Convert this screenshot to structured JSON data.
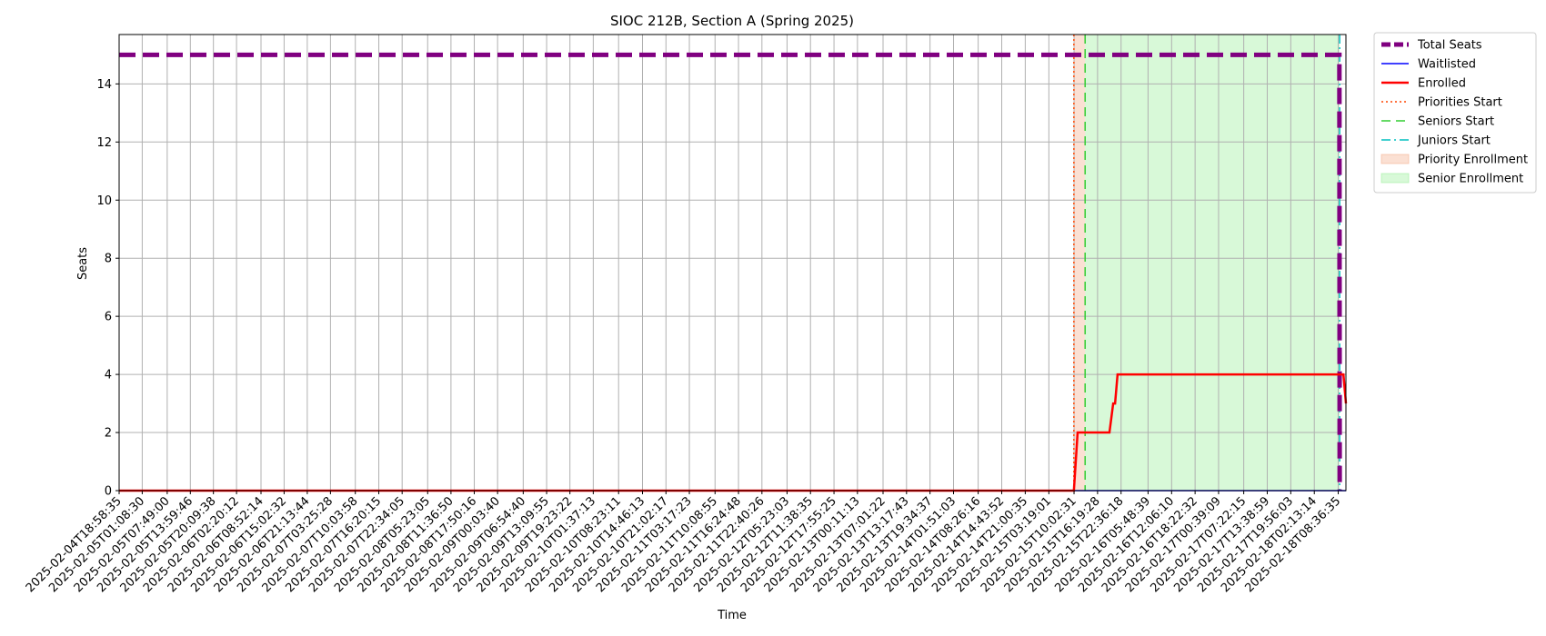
{
  "chart_data": {
    "type": "line",
    "title": "SIOC 212B, Section A (Spring 2025)",
    "xlabel": "Time",
    "ylabel": "Seats",
    "x_range": [
      "2025-02-04T18:58:35",
      "2025-02-18T10:40:00"
    ],
    "ylim": [
      0,
      15.7
    ],
    "y_ticks": [
      0,
      2,
      4,
      6,
      8,
      10,
      12,
      14
    ],
    "x_tick_labels": [
      "2025-02-04T18:58:35",
      "2025-02-05T01:08:30",
      "2025-02-05T07:49:00",
      "2025-02-05T13:59:46",
      "2025-02-05T20:09:38",
      "2025-02-06T02:20:12",
      "2025-02-06T08:52:14",
      "2025-02-06T15:02:32",
      "2025-02-06T21:13:44",
      "2025-02-07T03:25:28",
      "2025-02-07T10:03:58",
      "2025-02-07T16:20:15",
      "2025-02-07T22:34:05",
      "2025-02-08T05:23:05",
      "2025-02-08T11:36:50",
      "2025-02-08T17:50:16",
      "2025-02-09T00:03:40",
      "2025-02-09T06:54:40",
      "2025-02-09T13:09:55",
      "2025-02-09T19:23:22",
      "2025-02-10T01:37:13",
      "2025-02-10T08:23:11",
      "2025-02-10T14:46:13",
      "2025-02-10T21:02:17",
      "2025-02-11T03:17:23",
      "2025-02-11T10:08:55",
      "2025-02-11T16:24:48",
      "2025-02-11T22:40:26",
      "2025-02-12T05:23:03",
      "2025-02-12T11:38:35",
      "2025-02-12T17:55:25",
      "2025-02-13T00:11:13",
      "2025-02-13T07:01:22",
      "2025-02-13T13:17:43",
      "2025-02-13T19:34:37",
      "2025-02-14T01:51:03",
      "2025-02-14T08:26:16",
      "2025-02-14T14:43:52",
      "2025-02-14T21:00:35",
      "2025-02-15T03:19:01",
      "2025-02-15T10:02:31",
      "2025-02-15T16:19:28",
      "2025-02-15T22:36:18",
      "2025-02-16T05:48:39",
      "2025-02-16T12:06:10",
      "2025-02-16T18:22:32",
      "2025-02-17T00:39:09",
      "2025-02-17T07:22:15",
      "2025-02-17T13:38:59",
      "2025-02-17T19:56:03",
      "2025-02-18T02:13:14",
      "2025-02-18T08:36:35"
    ],
    "series": [
      {
        "name": "Total Seats",
        "color": "#800080",
        "style": "dashed",
        "points": [
          [
            "2025-02-04T18:58:35",
            15
          ],
          [
            "2025-02-18T08:36:35",
            15
          ],
          [
            "2025-02-18T08:55:00",
            15
          ],
          [
            "2025-02-18T09:00:00",
            0
          ]
        ]
      },
      {
        "name": "Waitlisted",
        "color": "#0000ff",
        "style": "solid",
        "points": [
          [
            "2025-02-04T18:58:35",
            0
          ],
          [
            "2025-02-18T10:40:00",
            0
          ]
        ]
      },
      {
        "name": "Enrolled",
        "color": "#ff0000",
        "style": "solid",
        "points": [
          [
            "2025-02-04T18:58:35",
            0
          ],
          [
            "2025-02-15T10:00:00",
            0
          ],
          [
            "2025-02-15T11:00:00",
            2
          ],
          [
            "2025-02-15T19:30:00",
            2
          ],
          [
            "2025-02-15T20:30:00",
            3
          ],
          [
            "2025-02-15T21:00:00",
            3
          ],
          [
            "2025-02-15T21:40:00",
            4
          ],
          [
            "2025-02-18T10:00:00",
            4
          ],
          [
            "2025-02-18T10:40:00",
            3
          ]
        ]
      }
    ],
    "vlines": [
      {
        "name": "Priorities Start",
        "x": "2025-02-15T10:00:00",
        "color": "#ff4500",
        "style": "dotted"
      },
      {
        "name": "Seniors Start",
        "x": "2025-02-15T13:00:00",
        "color": "#32cd32",
        "style": "dashed"
      },
      {
        "name": "Juniors Start",
        "x": "2025-02-18T09:00:00",
        "color": "#00bfbf",
        "style": "dashdot"
      }
    ],
    "spans": [
      {
        "name": "Priority Enrollment",
        "x0": "2025-02-15T10:00:00",
        "x1": "2025-02-15T13:00:00",
        "color": "#f4a582"
      },
      {
        "name": "Senior Enrollment",
        "x0": "2025-02-15T13:00:00",
        "x1": "2025-02-18T09:00:00",
        "color": "#90ee90"
      }
    ],
    "grid": true,
    "legend_position": "outside-top-right"
  }
}
